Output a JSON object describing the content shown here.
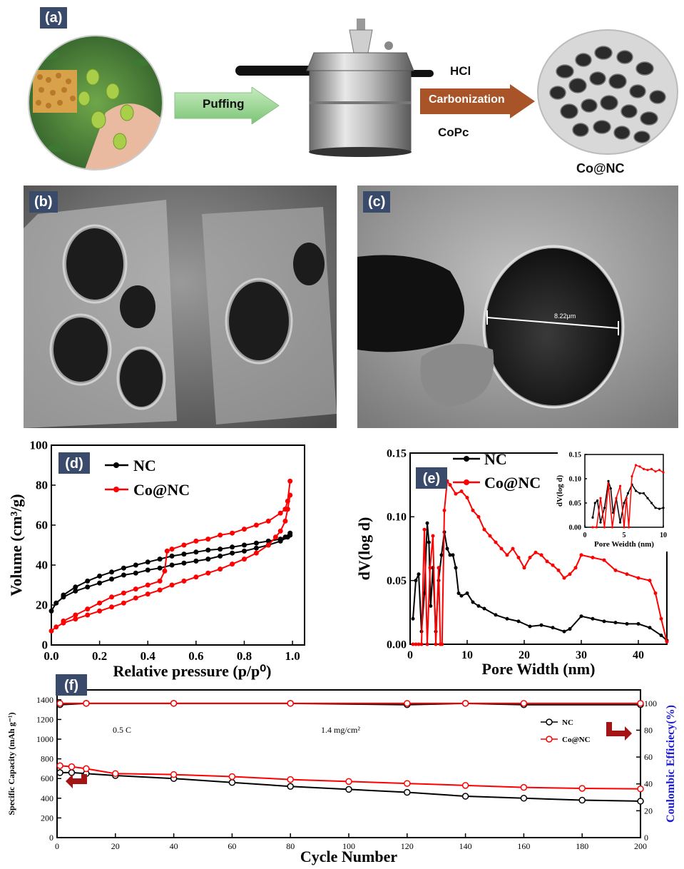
{
  "panel_a": {
    "label": "(a)",
    "puffing": "Puffing",
    "hcl": "HCl",
    "carbonization": "Carbonization",
    "copc": "CoPc",
    "product": "Co@NC",
    "colors": {
      "puff_arrow": "#8fd18a",
      "carb_arrow": "#b05a2c"
    }
  },
  "panel_b": {
    "label": "(b)"
  },
  "panel_c": {
    "label": "(c)",
    "scale": "8.22μm"
  },
  "chart_data": [
    {
      "id": "d",
      "label": "(d)",
      "type": "line",
      "xlabel": "Relative pressure (p/p⁰)",
      "ylabel": "Volume (cm³/g)",
      "xlim": [
        0.0,
        1.05
      ],
      "ylim": [
        0,
        100
      ],
      "xticks": [
        "0.0",
        "0.2",
        "0.4",
        "0.6",
        "0.8",
        "1.0"
      ],
      "yticks": [
        "0",
        "20",
        "40",
        "60",
        "80",
        "100"
      ],
      "legend": "top-left",
      "series": [
        {
          "name": "NC",
          "color": "#000000",
          "adsorption": {
            "x": [
              0.0,
              0.02,
              0.05,
              0.1,
              0.15,
              0.2,
              0.25,
              0.3,
              0.35,
              0.4,
              0.45,
              0.5,
              0.55,
              0.6,
              0.65,
              0.7,
              0.75,
              0.8,
              0.85,
              0.9,
              0.95,
              0.98,
              0.99
            ],
            "y": [
              17,
              21,
              24,
              27,
              29,
              31,
              33,
              35,
              36,
              37.5,
              38.5,
              40,
              41,
              42,
              43,
              44.5,
              46,
              47,
              48.5,
              50,
              52,
              54,
              55
            ]
          },
          "desorption": {
            "x": [
              0.99,
              0.97,
              0.95,
              0.9,
              0.85,
              0.8,
              0.75,
              0.7,
              0.65,
              0.6,
              0.55,
              0.5,
              0.45,
              0.4,
              0.35,
              0.3,
              0.25,
              0.2,
              0.15,
              0.1,
              0.05
            ],
            "y": [
              56,
              54,
              53,
              52,
              51,
              50,
              49,
              48,
              47.5,
              46.5,
              45.5,
              44.5,
              43,
              41.5,
              40,
              38.5,
              36.5,
              34.5,
              32,
              29,
              25
            ]
          }
        },
        {
          "name": "Co@NC",
          "color": "#ff0000",
          "adsorption": {
            "x": [
              0.0,
              0.02,
              0.05,
              0.1,
              0.15,
              0.2,
              0.25,
              0.3,
              0.35,
              0.4,
              0.45,
              0.5,
              0.55,
              0.6,
              0.65,
              0.7,
              0.75,
              0.8,
              0.85,
              0.9,
              0.93,
              0.95,
              0.97,
              0.98,
              0.99
            ],
            "y": [
              7,
              9,
              11,
              13,
              15,
              17,
              19,
              21,
              23.5,
              25.5,
              27.5,
              30,
              32,
              34,
              36,
              38,
              40.5,
              43,
              46,
              50,
              54,
              57,
              62,
              68,
              75
            ]
          },
          "desorption": {
            "x": [
              0.99,
              0.98,
              0.97,
              0.95,
              0.9,
              0.85,
              0.8,
              0.75,
              0.7,
              0.65,
              0.6,
              0.55,
              0.5,
              0.48,
              0.47,
              0.45,
              0.4,
              0.35,
              0.3,
              0.25,
              0.2,
              0.15,
              0.1,
              0.05
            ],
            "y": [
              82,
              72,
              68,
              66,
              62,
              60,
              58,
              56,
              55,
              53,
              52,
              50,
              48,
              47,
              37,
              32,
              30,
              28,
              26,
              24,
              21,
              18,
              15,
              12
            ]
          }
        }
      ]
    },
    {
      "id": "e",
      "label": "(e)",
      "type": "line",
      "xlabel": "Pore Width (nm)",
      "ylabel": "dV(log d)",
      "xlim": [
        0,
        45
      ],
      "ylim": [
        0,
        0.15
      ],
      "xticks": [
        "0",
        "10",
        "20",
        "30",
        "40"
      ],
      "yticks": [
        "0.00",
        "0.05",
        "0.10",
        "0.15"
      ],
      "legend": "top-left",
      "series": [
        {
          "name": "NC",
          "color": "#000000",
          "x": [
            0.5,
            1,
            1.5,
            2,
            2.5,
            3,
            3.3,
            3.6,
            4,
            4.5,
            5,
            5.5,
            6,
            6.5,
            7,
            7.5,
            8,
            8.5,
            9,
            10,
            11,
            12,
            13,
            15,
            17,
            19,
            21,
            23,
            25,
            27,
            28,
            30,
            32,
            34,
            36,
            38,
            40,
            42,
            44,
            45
          ],
          "y": [
            0.02,
            0.05,
            0.055,
            0.01,
            0.04,
            0.095,
            0.08,
            0.03,
            0.06,
            0.01,
            0.05,
            0.07,
            0.088,
            0.075,
            0.07,
            0.07,
            0.06,
            0.04,
            0.038,
            0.04,
            0.033,
            0.03,
            0.028,
            0.023,
            0.02,
            0.018,
            0.014,
            0.015,
            0.013,
            0.01,
            0.012,
            0.022,
            0.02,
            0.018,
            0.017,
            0.016,
            0.016,
            0.013,
            0.007,
            0.003
          ]
        },
        {
          "name": "Co@NC",
          "color": "#ff0000",
          "x": [
            0.5,
            1,
            1.5,
            2,
            2.5,
            3,
            3.5,
            4,
            4.5,
            5,
            5.3,
            5.6,
            6,
            6.5,
            7,
            8,
            9,
            10,
            11,
            12,
            13,
            14,
            15,
            16,
            17,
            18,
            19,
            20,
            21,
            22,
            23,
            24,
            25,
            26,
            27,
            28,
            29,
            30,
            32,
            34,
            36,
            38,
            40,
            42,
            43,
            44,
            45
          ],
          "y": [
            0.0,
            0.0,
            0.0,
            0.0,
            0.09,
            0.0,
            0.06,
            0.085,
            0.0,
            0.06,
            0.0,
            0.0,
            0.105,
            0.128,
            0.125,
            0.118,
            0.12,
            0.115,
            0.105,
            0.1,
            0.09,
            0.085,
            0.08,
            0.075,
            0.07,
            0.075,
            0.068,
            0.06,
            0.068,
            0.072,
            0.07,
            0.065,
            0.062,
            0.058,
            0.052,
            0.055,
            0.06,
            0.07,
            0.068,
            0.066,
            0.058,
            0.055,
            0.052,
            0.05,
            0.04,
            0.02,
            0.002
          ]
        }
      ],
      "inset": {
        "xlabel": "Pore Weidth (nm)",
        "ylabel": "dV(log d)",
        "xlim": [
          0,
          10
        ],
        "ylim": [
          0,
          0.15
        ],
        "xticks": [
          "0",
          "5",
          "10"
        ],
        "yticks": [
          "0.00",
          "0.05",
          "0.10",
          "0.15"
        ],
        "series": [
          {
            "name": "NC",
            "color": "#000000",
            "x": [
              1,
              1.3,
              1.6,
              2,
              2.5,
              3,
              3.3,
              3.6,
              4,
              4.5,
              5,
              5.5,
              6,
              6.5,
              7,
              7.5,
              8,
              8.5,
              9,
              9.5,
              10
            ],
            "y": [
              0.02,
              0.05,
              0.055,
              0.01,
              0.04,
              0.095,
              0.08,
              0.03,
              0.06,
              0.01,
              0.05,
              0.07,
              0.088,
              0.075,
              0.07,
              0.07,
              0.06,
              0.05,
              0.04,
              0.038,
              0.04
            ]
          },
          {
            "name": "Co@NC",
            "color": "#ff0000",
            "x": [
              1,
              1.5,
              2,
              2.5,
              3,
              3.5,
              4,
              4.5,
              5,
              5.3,
              5.6,
              6,
              6.5,
              7,
              7.5,
              8,
              8.5,
              9,
              9.5,
              10
            ],
            "y": [
              0.0,
              0.0,
              0.06,
              0.0,
              0.09,
              0.0,
              0.06,
              0.085,
              0.0,
              0.06,
              0.0,
              0.105,
              0.128,
              0.125,
              0.12,
              0.118,
              0.12,
              0.115,
              0.118,
              0.113
            ]
          }
        ]
      }
    },
    {
      "id": "f",
      "label": "(f)",
      "type": "scatter",
      "xlabel": "Cycle Number",
      "ylabel": "Specific Capacity (mAh g⁻¹)",
      "y2label": "Coulombic Efficiecy(%)",
      "xlim": [
        0,
        200
      ],
      "ylim": [
        0,
        1500
      ],
      "y2lim": [
        0,
        110
      ],
      "xticks": [
        "0",
        "20",
        "40",
        "60",
        "80",
        "100",
        "120",
        "140",
        "160",
        "180",
        "200"
      ],
      "yticks": [
        "0",
        "200",
        "400",
        "600",
        "800",
        "1000",
        "1200",
        "1400"
      ],
      "y2ticks": [
        "0",
        "20",
        "40",
        "60",
        "80",
        "100"
      ],
      "annotations": [
        "0.5 C",
        "1.4 mg/cm²"
      ],
      "legend": "right",
      "series": [
        {
          "name": "NC",
          "color": "#000000",
          "axis": "left",
          "x": [
            1,
            5,
            10,
            20,
            40,
            60,
            80,
            100,
            120,
            140,
            160,
            180,
            200
          ],
          "y": [
            660,
            660,
            650,
            630,
            600,
            560,
            520,
            490,
            460,
            420,
            400,
            380,
            370
          ]
        },
        {
          "name": "Co@NC",
          "color": "#ff0000",
          "axis": "left",
          "x": [
            1,
            5,
            10,
            20,
            40,
            60,
            80,
            100,
            120,
            140,
            160,
            180,
            200
          ],
          "y": [
            730,
            720,
            700,
            650,
            640,
            620,
            590,
            570,
            550,
            530,
            510,
            500,
            495
          ]
        },
        {
          "name": "NC",
          "color": "#000000",
          "axis": "right",
          "x": [
            1,
            10,
            40,
            80,
            120,
            140,
            160,
            200
          ],
          "y": [
            99,
            100,
            100,
            100,
            99,
            100,
            99,
            99
          ]
        },
        {
          "name": "Co@NC",
          "color": "#ff0000",
          "axis": "right",
          "x": [
            1,
            10,
            40,
            80,
            120,
            140,
            160,
            200
          ],
          "y": [
            100,
            100,
            100,
            100,
            100,
            100,
            100,
            100
          ]
        }
      ]
    }
  ]
}
